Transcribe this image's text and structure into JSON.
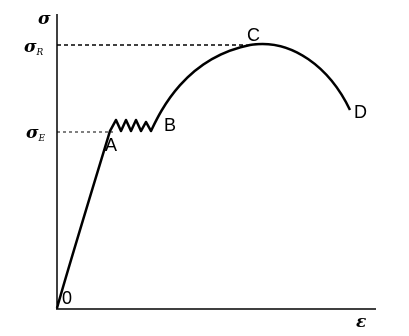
{
  "axes": {
    "y_label": "σ",
    "x_label": "ε",
    "origin": "0"
  },
  "levels": [
    {
      "symbol": "σ",
      "subscript": "R"
    },
    {
      "symbol": "σ",
      "subscript": "E"
    }
  ],
  "points": [
    "A",
    "B",
    "C",
    "D"
  ]
}
